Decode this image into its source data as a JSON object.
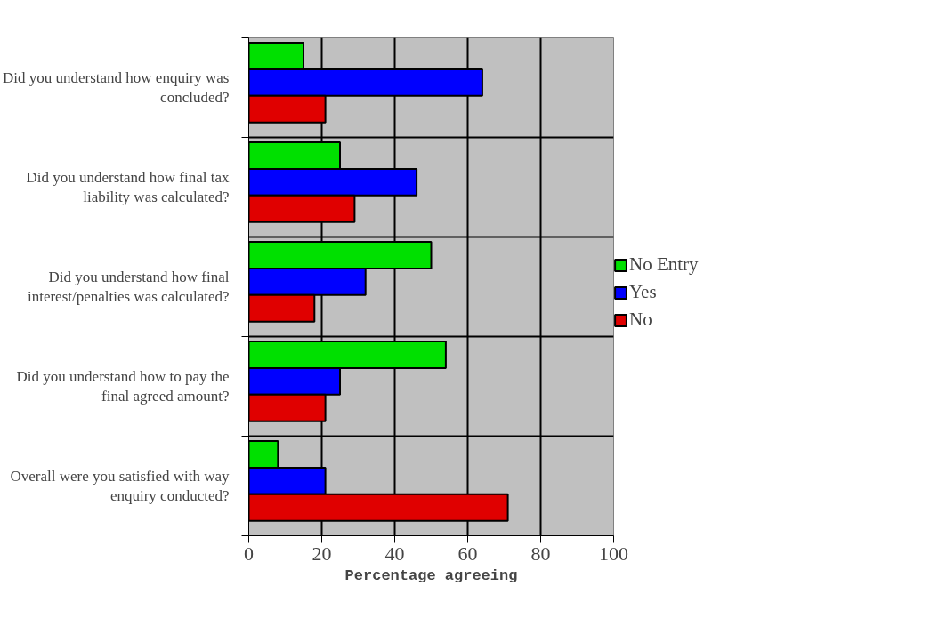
{
  "chart_data": {
    "type": "bar",
    "orientation": "horizontal",
    "xlabel": "Percentage agreeing",
    "categories": [
      "Did you understand how enquiry was concluded?",
      "Did you understand how final tax liability was calculated?",
      "Did you understand how final interest/penalties was calculated?",
      "Did you understand how to pay the final agreed amount?",
      "Overall were you satisfied with way enquiry conducted?"
    ],
    "series": [
      {
        "name": "No Entry",
        "color": "#00e000",
        "values": [
          15,
          25,
          50,
          54,
          8
        ]
      },
      {
        "name": "Yes",
        "color": "#0000ff",
        "values": [
          64,
          46,
          32,
          25,
          21
        ]
      },
      {
        "name": "No",
        "color": "#e00000",
        "values": [
          21,
          29,
          18,
          21,
          71
        ]
      }
    ],
    "xlim": [
      0,
      100
    ],
    "xticks": [
      0,
      20,
      40,
      60,
      80,
      100
    ],
    "grid": true,
    "legend": "right"
  }
}
